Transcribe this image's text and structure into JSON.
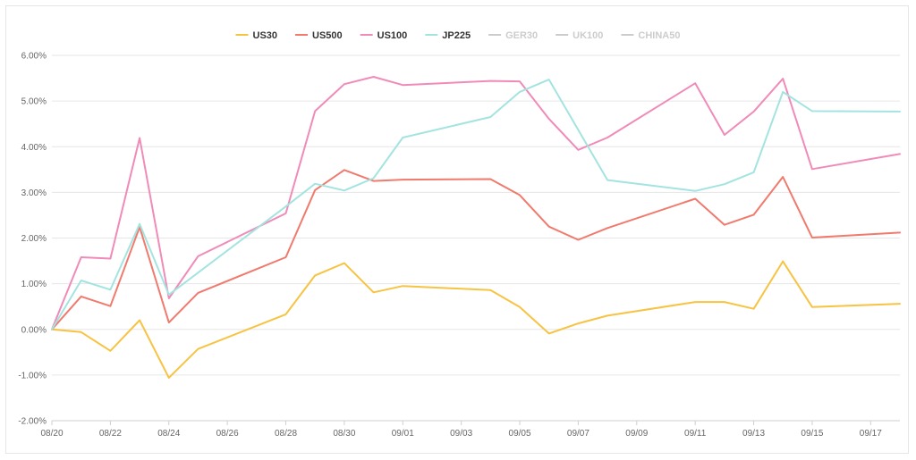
{
  "chart_data": {
    "type": "line",
    "title": "",
    "xlabel": "",
    "ylabel": "",
    "ylim": [
      -2,
      6
    ],
    "y_ticks": [
      -2,
      -1,
      0,
      1,
      2,
      3,
      4,
      5,
      6
    ],
    "y_tick_labels": [
      "-2.00%",
      "-1.00%",
      "0.00%",
      "1.00%",
      "2.00%",
      "3.00%",
      "4.00%",
      "5.00%",
      "6.00%"
    ],
    "x_ticks": [
      "08/20",
      "08/22",
      "08/24",
      "08/26",
      "08/28",
      "08/30",
      "09/01",
      "09/03",
      "09/05",
      "09/07",
      "09/09",
      "09/11",
      "09/13",
      "09/15",
      "09/17"
    ],
    "x_range": [
      "2020-08-20",
      "2020-09-18"
    ],
    "grid": "horizontal",
    "legend_position": "top-center",
    "series": [
      {
        "name": "US30",
        "color": "#f7c342",
        "visible": true,
        "points": [
          [
            "2020-08-20",
            0.0
          ],
          [
            "2020-08-21",
            -0.06
          ],
          [
            "2020-08-22",
            -0.47
          ],
          [
            "2020-08-23",
            0.2
          ],
          [
            "2020-08-24",
            -1.06
          ],
          [
            "2020-08-25",
            -0.43
          ],
          [
            "2020-08-28",
            0.33
          ],
          [
            "2020-08-29",
            1.18
          ],
          [
            "2020-08-30",
            1.45
          ],
          [
            "2020-08-31",
            0.81
          ],
          [
            "2020-09-01",
            0.95
          ],
          [
            "2020-09-04",
            0.86
          ],
          [
            "2020-09-05",
            0.49
          ],
          [
            "2020-09-06",
            -0.09
          ],
          [
            "2020-09-07",
            0.13
          ],
          [
            "2020-09-08",
            0.3
          ],
          [
            "2020-09-11",
            0.6
          ],
          [
            "2020-09-12",
            0.6
          ],
          [
            "2020-09-13",
            0.45
          ],
          [
            "2020-09-14",
            1.49
          ],
          [
            "2020-09-15",
            0.49
          ],
          [
            "2020-09-18",
            0.56
          ]
        ]
      },
      {
        "name": "US500",
        "color": "#f07a6e",
        "visible": true,
        "points": [
          [
            "2020-08-20",
            0.0
          ],
          [
            "2020-08-21",
            0.72
          ],
          [
            "2020-08-22",
            0.51
          ],
          [
            "2020-08-23",
            2.24
          ],
          [
            "2020-08-24",
            0.15
          ],
          [
            "2020-08-25",
            0.8
          ],
          [
            "2020-08-28",
            1.58
          ],
          [
            "2020-08-29",
            3.05
          ],
          [
            "2020-08-30",
            3.49
          ],
          [
            "2020-08-31",
            3.25
          ],
          [
            "2020-09-01",
            3.28
          ],
          [
            "2020-09-04",
            3.29
          ],
          [
            "2020-09-05",
            2.94
          ],
          [
            "2020-09-06",
            2.25
          ],
          [
            "2020-09-07",
            1.96
          ],
          [
            "2020-09-08",
            2.22
          ],
          [
            "2020-09-11",
            2.86
          ],
          [
            "2020-09-12",
            2.29
          ],
          [
            "2020-09-13",
            2.51
          ],
          [
            "2020-09-14",
            3.34
          ],
          [
            "2020-09-15",
            2.01
          ],
          [
            "2020-09-18",
            2.12
          ]
        ]
      },
      {
        "name": "US100",
        "color": "#f08bb9",
        "visible": true,
        "points": [
          [
            "2020-08-20",
            0.0
          ],
          [
            "2020-08-21",
            1.58
          ],
          [
            "2020-08-22",
            1.55
          ],
          [
            "2020-08-23",
            4.19
          ],
          [
            "2020-08-24",
            0.68
          ],
          [
            "2020-08-25",
            1.6
          ],
          [
            "2020-08-28",
            2.54
          ],
          [
            "2020-08-29",
            4.78
          ],
          [
            "2020-08-30",
            5.37
          ],
          [
            "2020-08-31",
            5.53
          ],
          [
            "2020-09-01",
            5.35
          ],
          [
            "2020-09-04",
            5.44
          ],
          [
            "2020-09-05",
            5.43
          ],
          [
            "2020-09-06",
            4.61
          ],
          [
            "2020-09-07",
            3.93
          ],
          [
            "2020-09-08",
            4.2
          ],
          [
            "2020-09-11",
            5.39
          ],
          [
            "2020-09-12",
            4.26
          ],
          [
            "2020-09-13",
            4.77
          ],
          [
            "2020-09-14",
            5.49
          ],
          [
            "2020-09-15",
            3.51
          ],
          [
            "2020-09-18",
            3.84
          ]
        ]
      },
      {
        "name": "JP225",
        "color": "#a3e4e0",
        "visible": true,
        "points": [
          [
            "2020-08-20",
            0.0
          ],
          [
            "2020-08-21",
            1.07
          ],
          [
            "2020-08-22",
            0.87
          ],
          [
            "2020-08-23",
            2.31
          ],
          [
            "2020-08-24",
            0.76
          ],
          [
            "2020-08-28",
            2.69
          ],
          [
            "2020-08-29",
            3.19
          ],
          [
            "2020-08-30",
            3.04
          ],
          [
            "2020-08-31",
            3.31
          ],
          [
            "2020-09-01",
            4.2
          ],
          [
            "2020-09-04",
            4.65
          ],
          [
            "2020-09-05",
            5.2
          ],
          [
            "2020-09-06",
            5.47
          ],
          [
            "2020-09-08",
            3.27
          ],
          [
            "2020-09-11",
            3.03
          ],
          [
            "2020-09-12",
            3.18
          ],
          [
            "2020-09-13",
            3.44
          ],
          [
            "2020-09-14",
            5.2
          ],
          [
            "2020-09-15",
            4.78
          ],
          [
            "2020-09-18",
            4.77
          ]
        ]
      },
      {
        "name": "GER30",
        "color": "#cccccc",
        "visible": false,
        "points": []
      },
      {
        "name": "UK100",
        "color": "#cccccc",
        "visible": false,
        "points": []
      },
      {
        "name": "CHINA50",
        "color": "#cccccc",
        "visible": false,
        "points": []
      }
    ]
  }
}
